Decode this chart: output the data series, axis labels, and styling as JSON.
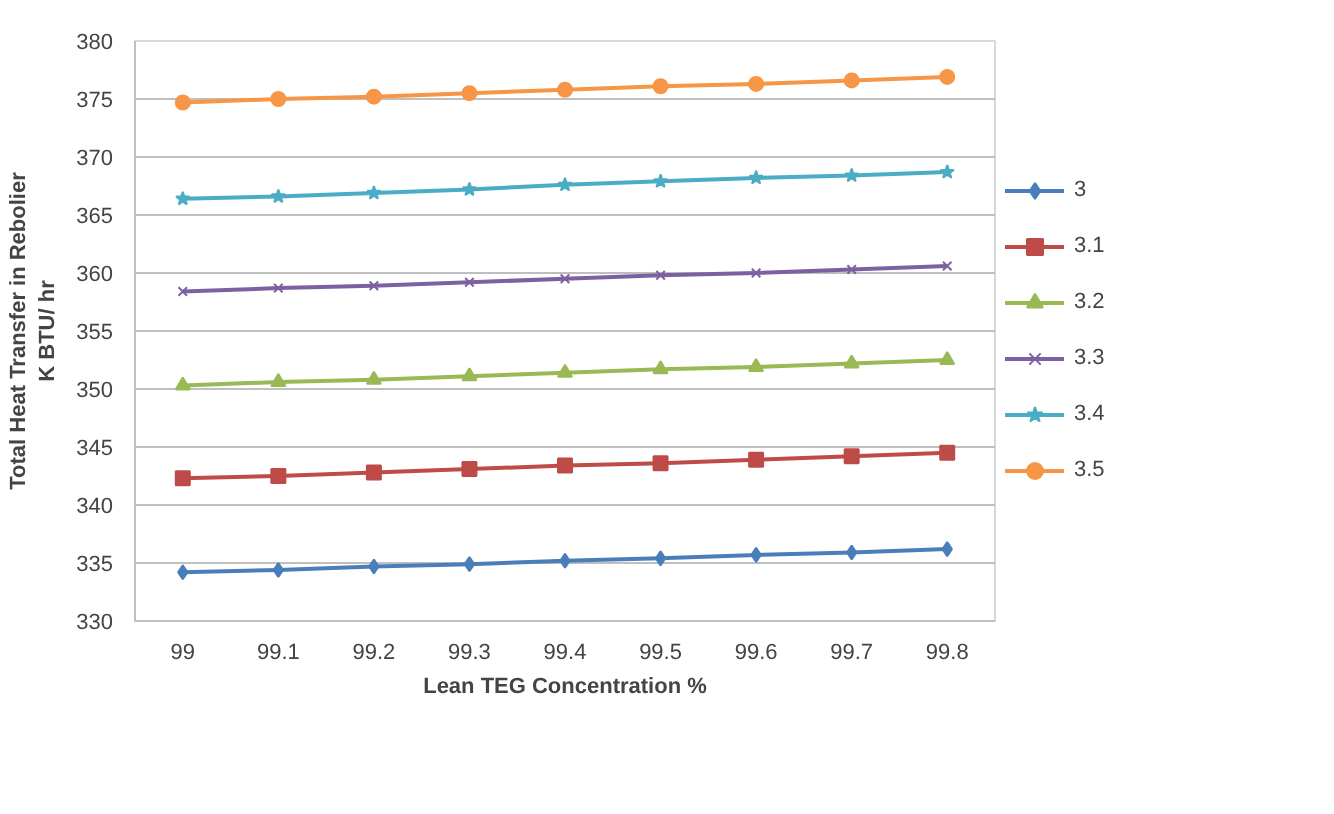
{
  "chart_data": {
    "type": "line",
    "xlabel": "Lean TEG Concentration %",
    "ylabel": "Total Heat Transfer in Rebolier\nK BTU/ hr",
    "categories": [
      "99",
      "99.1",
      "99.2",
      "99.3",
      "99.4",
      "99.5",
      "99.6",
      "99.7",
      "99.8"
    ],
    "ylim": [
      330,
      380
    ],
    "yticks": [
      330,
      335,
      340,
      345,
      350,
      355,
      360,
      365,
      370,
      375,
      380
    ],
    "grid": "y",
    "legend": "right",
    "line_style": "solid",
    "series": [
      {
        "name": "3",
        "color": "#4a7ebb",
        "marker": "diamond",
        "values": [
          334.2,
          334.4,
          334.7,
          334.9,
          335.2,
          335.4,
          335.7,
          335.9,
          336.2
        ]
      },
      {
        "name": "3.1",
        "color": "#be4b48",
        "marker": "square",
        "values": [
          342.3,
          342.5,
          342.8,
          343.1,
          343.4,
          343.6,
          343.9,
          344.2,
          344.5
        ]
      },
      {
        "name": "3.2",
        "color": "#98b954",
        "marker": "triangle",
        "values": [
          350.3,
          350.6,
          350.8,
          351.1,
          351.4,
          351.7,
          351.9,
          352.2,
          352.5
        ]
      },
      {
        "name": "3.3",
        "color": "#7d60a0",
        "marker": "cross",
        "values": [
          358.4,
          358.7,
          358.9,
          359.2,
          359.5,
          359.8,
          360.0,
          360.3,
          360.6
        ]
      },
      {
        "name": "3.4",
        "color": "#4bacc6",
        "marker": "star",
        "values": [
          366.4,
          366.6,
          366.9,
          367.2,
          367.6,
          367.9,
          368.2,
          368.4,
          368.7
        ]
      },
      {
        "name": "3.5",
        "color": "#f79646",
        "marker": "circle",
        "values": [
          374.7,
          375.0,
          375.2,
          375.5,
          375.8,
          376.1,
          376.3,
          376.6,
          376.9
        ]
      }
    ]
  }
}
